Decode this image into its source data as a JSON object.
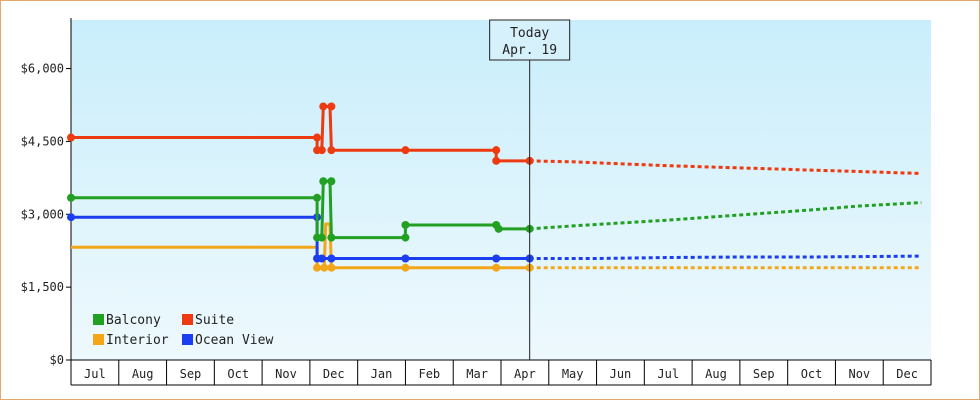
{
  "chart_data": {
    "type": "line",
    "title": "",
    "xlabel": "",
    "ylabel": "",
    "months": [
      "Jul",
      "Aug",
      "Sep",
      "Oct",
      "Nov",
      "Dec",
      "Jan",
      "Feb",
      "Mar",
      "Apr",
      "May",
      "Jun",
      "Jul",
      "Aug",
      "Sep",
      "Oct",
      "Nov",
      "Dec"
    ],
    "ylim": [
      0,
      7000
    ],
    "y_ticks": [
      {
        "value": 0,
        "label": "$0"
      },
      {
        "value": 1500,
        "label": "$1,500"
      },
      {
        "value": 3000,
        "label": "$3,000"
      },
      {
        "value": 4500,
        "label": "$4,500"
      },
      {
        "value": 6000,
        "label": "$6,000"
      }
    ],
    "today": {
      "line1": "Today",
      "line2": "Apr. 19",
      "x": 9.6
    },
    "grid": false,
    "legend_position": "bottom-left",
    "series": [
      {
        "name": "Balcony",
        "color": "#22a022",
        "history": [
          [
            0,
            3340
          ],
          [
            5.15,
            3340
          ],
          [
            5.15,
            2520
          ],
          [
            5.25,
            2520
          ],
          [
            5.28,
            3680
          ],
          [
            5.42,
            3680
          ],
          [
            5.45,
            2520
          ],
          [
            7.0,
            2520
          ],
          [
            7.0,
            2780
          ],
          [
            8.9,
            2780
          ],
          [
            8.95,
            2700
          ],
          [
            9.6,
            2700
          ]
        ],
        "history_markers": [
          [
            0,
            3340
          ],
          [
            5.15,
            3340
          ],
          [
            5.15,
            2520
          ],
          [
            5.25,
            2520
          ],
          [
            5.28,
            3680
          ],
          [
            5.45,
            3680
          ],
          [
            5.45,
            2520
          ],
          [
            7.0,
            2520
          ],
          [
            7.0,
            2780
          ],
          [
            8.9,
            2780
          ],
          [
            8.95,
            2700
          ],
          [
            9.6,
            2700
          ]
        ],
        "forecast": [
          [
            9.6,
            2700
          ],
          [
            10.5,
            2760
          ],
          [
            11.5,
            2820
          ],
          [
            12.5,
            2880
          ],
          [
            13.5,
            2950
          ],
          [
            14.5,
            3020
          ],
          [
            15.5,
            3090
          ],
          [
            16.5,
            3170
          ],
          [
            17.8,
            3240
          ]
        ]
      },
      {
        "name": "Suite",
        "color": "#ee3a10",
        "history": [
          [
            0,
            4580
          ],
          [
            5.15,
            4580
          ],
          [
            5.15,
            4320
          ],
          [
            5.25,
            4320
          ],
          [
            5.28,
            5220
          ],
          [
            5.42,
            5220
          ],
          [
            5.45,
            4320
          ],
          [
            7.0,
            4320
          ],
          [
            8.9,
            4320
          ],
          [
            8.9,
            4100
          ],
          [
            9.6,
            4100
          ]
        ],
        "history_markers": [
          [
            0,
            4580
          ],
          [
            5.15,
            4580
          ],
          [
            5.15,
            4320
          ],
          [
            5.25,
            4320
          ],
          [
            5.28,
            5220
          ],
          [
            5.45,
            5220
          ],
          [
            5.45,
            4320
          ],
          [
            7.0,
            4320
          ],
          [
            8.9,
            4320
          ],
          [
            8.9,
            4100
          ],
          [
            9.6,
            4100
          ]
        ],
        "forecast": [
          [
            9.6,
            4100
          ],
          [
            10.5,
            4080
          ],
          [
            11.5,
            4040
          ],
          [
            12.5,
            4000
          ],
          [
            13.5,
            3970
          ],
          [
            14.5,
            3940
          ],
          [
            15.5,
            3910
          ],
          [
            16.5,
            3880
          ],
          [
            17.8,
            3840
          ]
        ]
      },
      {
        "name": "Interior",
        "color": "#f2a618",
        "history": [
          [
            0,
            2320
          ],
          [
            5.15,
            2320
          ],
          [
            5.15,
            1900
          ],
          [
            5.3,
            1900
          ],
          [
            5.33,
            2800
          ],
          [
            5.42,
            2800
          ],
          [
            5.45,
            1900
          ],
          [
            7.0,
            1900
          ],
          [
            8.9,
            1900
          ],
          [
            9.6,
            1900
          ]
        ],
        "history_markers": [
          [
            5.15,
            1900
          ],
          [
            5.3,
            1900
          ],
          [
            5.45,
            1900
          ],
          [
            7.0,
            1900
          ],
          [
            8.9,
            1900
          ],
          [
            9.6,
            1900
          ]
        ],
        "forecast": [
          [
            9.6,
            1900
          ],
          [
            13.0,
            1900
          ],
          [
            17.8,
            1900
          ]
        ]
      },
      {
        "name": "Ocean View",
        "color": "#1a3ef0",
        "history": [
          [
            0,
            2940
          ],
          [
            5.15,
            2940
          ],
          [
            5.15,
            2090
          ],
          [
            5.25,
            2090
          ],
          [
            5.28,
            2090
          ],
          [
            5.45,
            2090
          ],
          [
            7.0,
            2090
          ],
          [
            8.9,
            2090
          ],
          [
            9.6,
            2090
          ]
        ],
        "history_markers": [
          [
            0,
            2940
          ],
          [
            5.15,
            2940
          ],
          [
            5.15,
            2090
          ],
          [
            5.25,
            2090
          ],
          [
            5.45,
            2090
          ],
          [
            7.0,
            2090
          ],
          [
            8.9,
            2090
          ],
          [
            9.6,
            2090
          ]
        ],
        "forecast": [
          [
            9.6,
            2090
          ],
          [
            11.0,
            2090
          ],
          [
            12.5,
            2110
          ],
          [
            14.0,
            2120
          ],
          [
            15.5,
            2120
          ],
          [
            17.8,
            2140
          ]
        ]
      }
    ]
  }
}
